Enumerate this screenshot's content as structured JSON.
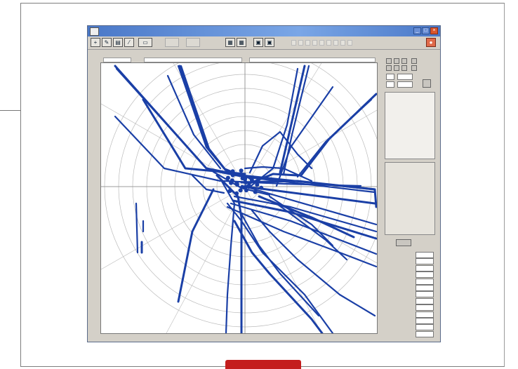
{
  "window": {
    "title": ""
  },
  "toolbar": {
    "buttons": [
      "zoom-in",
      "edit",
      "print",
      "pencil",
      "ruler",
      "chart-a",
      "chart-b",
      "export",
      "settings",
      "record"
    ],
    "close_label": "×"
  },
  "plot": {
    "header_left": "",
    "header_center": "",
    "header_right": "",
    "y_ticks": [
      "",
      "",
      "",
      "",
      "",
      "",
      "",
      "",
      "",
      "",
      "",
      "",
      "",
      "",
      "",
      "",
      "",
      ""
    ],
    "x_ticks": [
      "",
      "",
      "",
      "",
      "",
      "",
      "",
      "",
      "",
      "",
      "",
      "",
      "",
      "",
      "",
      ""
    ],
    "track_color": "#1a3fa6",
    "status": ""
  },
  "right_panel": {
    "fields": [
      {
        "label": "",
        "value": ""
      },
      {
        "label": "",
        "value": ""
      },
      {
        "label": "",
        "value": ""
      },
      {
        "label": "",
        "value": ""
      },
      {
        "label": "",
        "value": ""
      },
      {
        "label": "",
        "value": ""
      },
      {
        "label": "",
        "value": ""
      },
      {
        "label": "",
        "value": ""
      },
      {
        "label": "",
        "value": ""
      },
      {
        "label": "",
        "value": ""
      },
      {
        "label": "",
        "value": ""
      },
      {
        "label": "",
        "value": ""
      },
      {
        "label": "",
        "value": ""
      }
    ]
  },
  "badge": {
    "label": ""
  }
}
